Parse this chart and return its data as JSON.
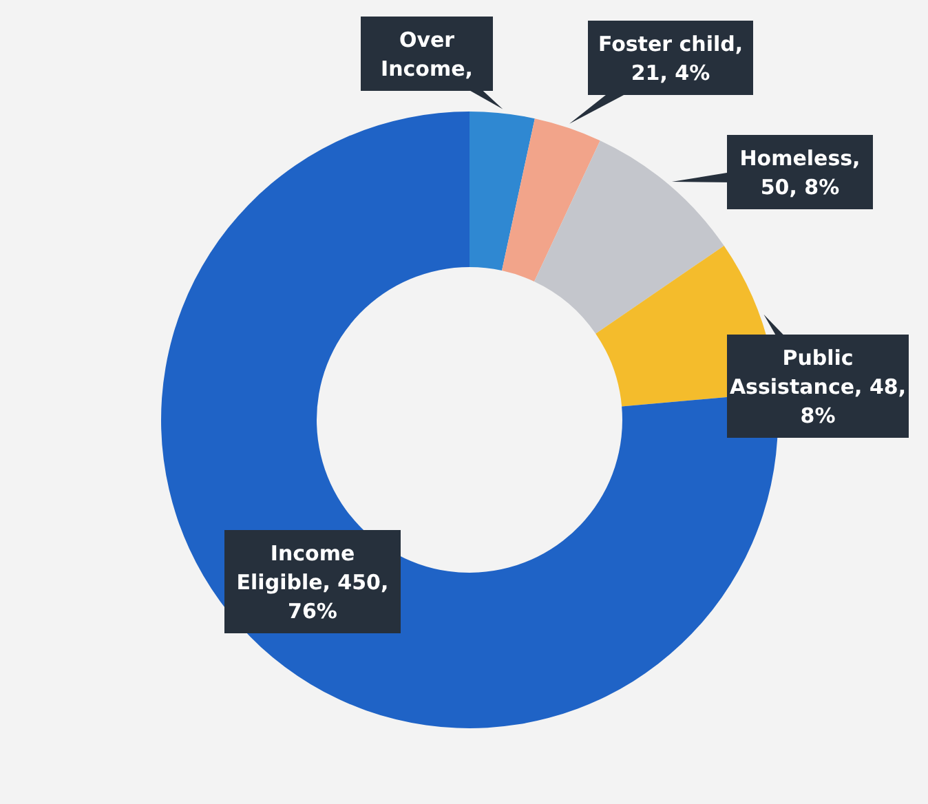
{
  "chart_data": {
    "type": "donut",
    "categories": [
      "Over Income",
      "Foster child",
      "Homeless",
      "Public Assistance",
      "Income Eligible"
    ],
    "values": [
      20,
      21,
      50,
      48,
      450
    ],
    "colors": [
      "#2f88d2",
      "#f2a48a",
      "#c4c6cc",
      "#f4bc2c",
      "#1f63c6"
    ],
    "value_labels": [
      ",",
      ", 21, 4%",
      ", 50, 8%",
      ", 48, 8%",
      ", 450, 76%"
    ],
    "legend": false
  }
}
